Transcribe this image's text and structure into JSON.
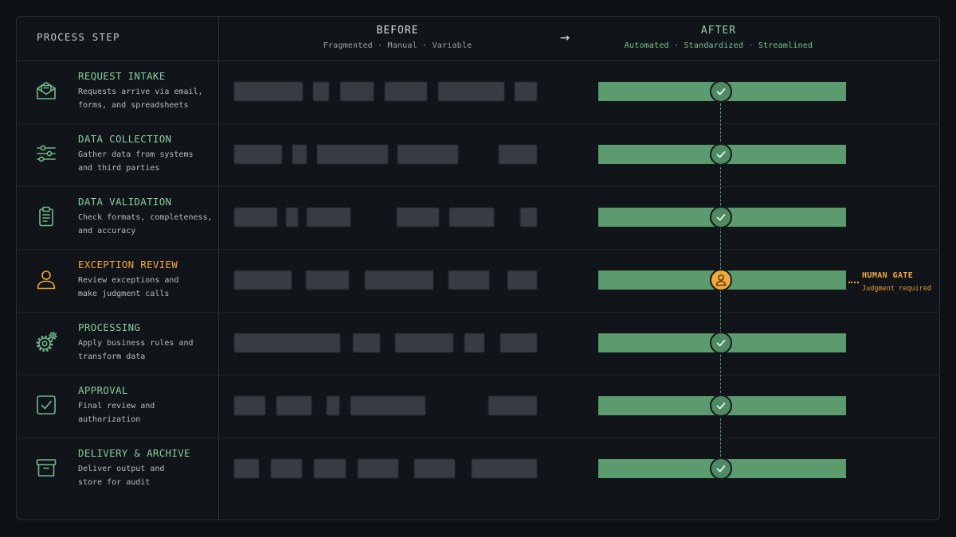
{
  "header": {
    "step_label": "PROCESS STEP",
    "before_title": "BEFORE",
    "before_subtitle": "Fragmented · Manual · Variable",
    "arrow": "→",
    "after_title": "AFTER",
    "after_subtitle": "Automated · Standardized · Streamlined"
  },
  "steps": [
    {
      "title": "REQUEST INTAKE",
      "desc": [
        "Requests arrive via email,",
        "forms, and spreadsheets"
      ],
      "icon": "envelope-icon",
      "after_status": "automated"
    },
    {
      "title": "DATA COLLECTION",
      "desc": [
        "Gather data from systems",
        "and third parties"
      ],
      "icon": "sliders-icon",
      "after_status": "automated"
    },
    {
      "title": "DATA VALIDATION",
      "desc": [
        "Check formats, completeness,",
        "and accuracy"
      ],
      "icon": "clipboard-icon",
      "after_status": "automated"
    },
    {
      "title": "EXCEPTION REVIEW",
      "desc": [
        "Review exceptions and",
        "make judgment calls"
      ],
      "icon": "user-icon",
      "after_status": "human"
    },
    {
      "title": "PROCESSING",
      "desc": [
        "Apply business rules and",
        "transform data"
      ],
      "icon": "gears-icon",
      "after_status": "automated"
    },
    {
      "title": "APPROVAL",
      "desc": [
        "Final review and",
        "authorization"
      ],
      "icon": "checkbox-icon",
      "after_status": "automated"
    },
    {
      "title": "DELIVERY & ARCHIVE",
      "desc": [
        "Deliver output and",
        "store for audit"
      ],
      "icon": "archive-icon",
      "after_status": "automated"
    }
  ],
  "human_gate": {
    "label": "HUMAN GATE",
    "sublabel": "Judgment required"
  },
  "colors": {
    "background": "#0d1014",
    "panel": "#11151a",
    "automated_green": "#5b9b6e",
    "title_green": "#86cc9c",
    "human_orange": "#f2a93b",
    "before_segment": "#383c42"
  }
}
